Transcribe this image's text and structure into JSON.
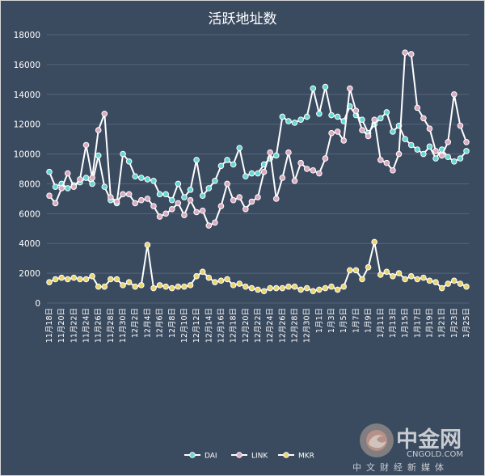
{
  "chart_data": {
    "type": "line",
    "title": "活跃地址数",
    "ylim": [
      0,
      18000
    ],
    "yticks": [
      0,
      2000,
      4000,
      6000,
      8000,
      10000,
      12000,
      14000,
      16000,
      18000
    ],
    "grid": true,
    "legend_position": "bottom",
    "categories": [
      "11月18日",
      "11月19日",
      "11月20日",
      "11月21日",
      "11月22日",
      "11月23日",
      "11月24日",
      "11月25日",
      "11月26日",
      "11月27日",
      "11月28日",
      "11月29日",
      "11月30日",
      "12月1日",
      "12月2日",
      "12月3日",
      "12月4日",
      "12月5日",
      "12月6日",
      "12月7日",
      "12月8日",
      "12月9日",
      "12月10日",
      "12月11日",
      "12月12日",
      "12月13日",
      "12月14日",
      "12月15日",
      "12月16日",
      "12月17日",
      "12月18日",
      "12月19日",
      "12月20日",
      "12月21日",
      "12月22日",
      "12月23日",
      "12月24日",
      "12月25日",
      "12月26日",
      "12月27日",
      "12月28日",
      "12月29日",
      "12月30日",
      "12月31日",
      "1月1日",
      "1月2日",
      "1月3日",
      "1月4日",
      "1月5日",
      "1月6日",
      "1月7日",
      "1月8日",
      "1月9日",
      "1月10日",
      "1月11日",
      "1月12日",
      "1月13日",
      "1月14日",
      "1月15日",
      "1月16日",
      "1月17日",
      "1月18日",
      "1月19日",
      "1月20日",
      "1月21日",
      "1月22日",
      "1月23日",
      "1月24日",
      "1月25日"
    ],
    "xtick_labels": [
      "11月18日",
      "11月20日",
      "11月22日",
      "11月24日",
      "11月26日",
      "11月28日",
      "11月30日",
      "12月2日",
      "12月4日",
      "12月6日",
      "12月8日",
      "12月10日",
      "12月12日",
      "12月14日",
      "12月16日",
      "12月18日",
      "12月20日",
      "12月22日",
      "12月24日",
      "12月26日",
      "12月28日",
      "12月30日",
      "1月1日",
      "1月3日",
      "1月5日",
      "1月7日",
      "1月9日",
      "1月11日",
      "1月13日",
      "1月15日",
      "1月17日",
      "1月19日",
      "1月21日",
      "1月23日",
      "1月25日"
    ],
    "series": [
      {
        "name": "DAI",
        "color": "#63d7d2",
        "values": [
          8800,
          7800,
          8000,
          7700,
          7900,
          8100,
          8400,
          8000,
          9900,
          7800,
          6900,
          6700,
          10000,
          9500,
          8500,
          8400,
          8300,
          8200,
          7300,
          7300,
          6900,
          8000,
          7100,
          7600,
          9600,
          7200,
          7700,
          8200,
          9200,
          9600,
          9300,
          10400,
          8500,
          8700,
          8700,
          9300,
          9700,
          9900,
          12500,
          12200,
          12100,
          12300,
          12500,
          14400,
          12700,
          14500,
          12600,
          12500,
          12200,
          13200,
          12600,
          12300,
          11400,
          12000,
          12400,
          12800,
          11500,
          11900,
          11000,
          10600,
          10300,
          10000,
          10500,
          9700,
          10300,
          9800,
          9500,
          9700,
          10200
        ]
      },
      {
        "name": "LINK",
        "color": "#dcaac0",
        "values": [
          7200,
          6700,
          7700,
          8700,
          7800,
          8300,
          10600,
          8400,
          11600,
          12700,
          7100,
          6800,
          7300,
          7300,
          6700,
          6900,
          7000,
          6500,
          5800,
          6000,
          6300,
          6700,
          5900,
          6900,
          6100,
          6200,
          5200,
          5400,
          6500,
          8000,
          6900,
          7100,
          6300,
          6800,
          7100,
          8800,
          10100,
          7000,
          8400,
          10100,
          8200,
          9400,
          9000,
          8900,
          8700,
          9700,
          11400,
          11500,
          10900,
          14400,
          12900,
          11600,
          11200,
          12300,
          9600,
          9400,
          8900,
          10000,
          16800,
          16700,
          13100,
          12400,
          11700,
          10200,
          9900,
          10800,
          14000,
          11900,
          10800
        ]
      },
      {
        "name": "MKR",
        "color": "#e9d56a",
        "values": [
          1400,
          1600,
          1700,
          1600,
          1700,
          1600,
          1600,
          1800,
          1100,
          1100,
          1600,
          1600,
          1200,
          1400,
          1100,
          1200,
          3900,
          1000,
          1200,
          1100,
          1000,
          1100,
          1100,
          1200,
          1800,
          2100,
          1700,
          1400,
          1500,
          1600,
          1200,
          1300,
          1100,
          1000,
          900,
          800,
          1000,
          1000,
          1000,
          1100,
          1100,
          900,
          1000,
          800,
          900,
          1000,
          1100,
          900,
          1100,
          2200,
          2200,
          1600,
          2400,
          4100,
          1900,
          2100,
          1800,
          2000,
          1600,
          1800,
          1600,
          1700,
          1500,
          1400,
          1000,
          1300,
          1500,
          1300,
          1100
        ]
      }
    ]
  },
  "watermark": {
    "brand": "中金网",
    "url": "CNGOLD.COM",
    "subtitle": "中文财经新媒体"
  }
}
